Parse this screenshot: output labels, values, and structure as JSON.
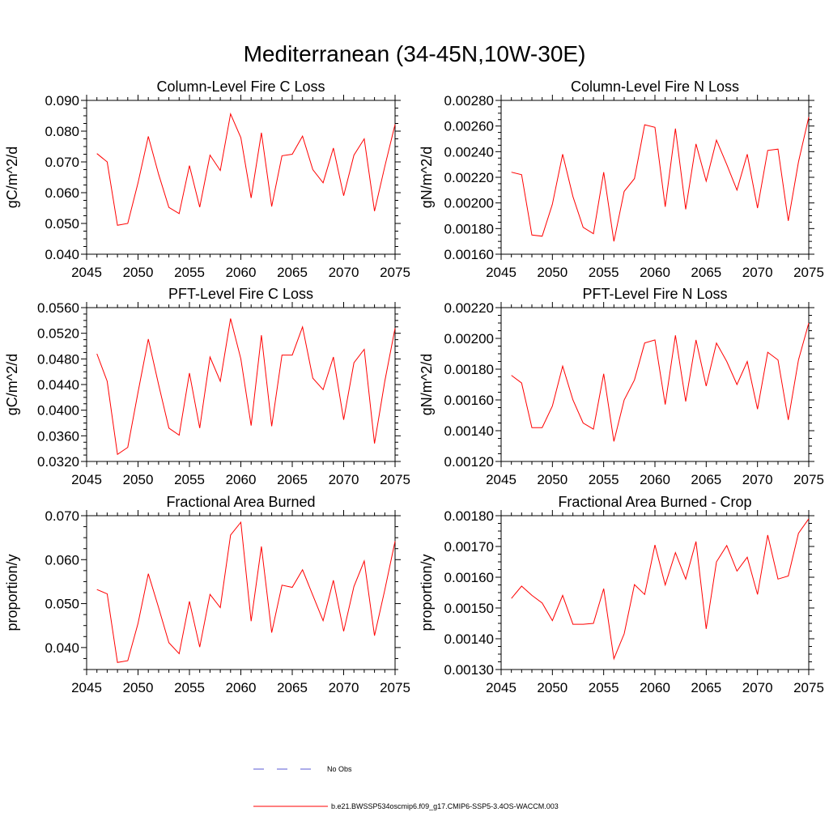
{
  "title": "Mediterranean (34-45N,10W-30E)",
  "colors": {
    "series": "#ff0000",
    "obs": "#5a5ad6",
    "axis": "#000000"
  },
  "legend": [
    {
      "label": "No Obs",
      "style": "dashed",
      "color": "#5a5ad6"
    },
    {
      "label": "b.e21.BWSSP534oscmip6.f09_g17.CMIP6-SSP5-3.4OS-WACCM.003",
      "style": "solid",
      "color": "#ff0000"
    }
  ],
  "chart_data": [
    {
      "type": "line",
      "title": "Column-Level Fire C Loss",
      "xlabel": "",
      "ylabel": "gC/m^2/d",
      "xlim": [
        2045,
        2075
      ],
      "ylim": [
        0.04,
        0.09
      ],
      "xticks": [
        2045,
        2050,
        2055,
        2060,
        2065,
        2070,
        2075
      ],
      "xtick_labels": [
        "2045",
        "2050",
        "2055",
        "2060",
        "2065",
        "2070",
        "2075"
      ],
      "yticks": [
        0.04,
        0.05,
        0.06,
        0.07,
        0.08,
        0.09
      ],
      "ytick_labels": [
        "0.040",
        "0.050",
        "0.060",
        "0.070",
        "0.080",
        "0.090"
      ],
      "x": [
        2046,
        2047,
        2048,
        2049,
        2050,
        2051,
        2052,
        2053,
        2054,
        2055,
        2056,
        2057,
        2058,
        2059,
        2060,
        2061,
        2062,
        2063,
        2064,
        2065,
        2066,
        2067,
        2068,
        2069,
        2070,
        2071,
        2072,
        2073,
        2074,
        2075
      ],
      "series": [
        {
          "name": "b.e21.BWSSP534oscmip6.f09_g17.CMIP6-SSP5-3.4OS-WACCM.003",
          "values": [
            0.0727,
            0.07,
            0.0494,
            0.05,
            0.0632,
            0.0783,
            0.066,
            0.0552,
            0.0532,
            0.0688,
            0.0553,
            0.0722,
            0.0672,
            0.0856,
            0.0779,
            0.0583,
            0.0795,
            0.0555,
            0.072,
            0.0725,
            0.0784,
            0.0675,
            0.0632,
            0.0745,
            0.059,
            0.0722,
            0.0775,
            0.054,
            0.0685,
            0.0822
          ]
        }
      ]
    },
    {
      "type": "line",
      "title": "Column-Level Fire N Loss",
      "xlabel": "",
      "ylabel": "gN/m^2/d",
      "xlim": [
        2045,
        2075
      ],
      "ylim": [
        0.0016,
        0.0028
      ],
      "xticks": [
        2045,
        2050,
        2055,
        2060,
        2065,
        2070,
        2075
      ],
      "xtick_labels": [
        "2045",
        "2050",
        "2055",
        "2060",
        "2065",
        "2070",
        "2075"
      ],
      "yticks": [
        0.0016,
        0.0018,
        0.002,
        0.0022,
        0.0024,
        0.0026,
        0.0028
      ],
      "ytick_labels": [
        "0.00160",
        "0.00180",
        "0.00200",
        "0.00220",
        "0.00240",
        "0.00260",
        "0.00280"
      ],
      "x": [
        2046,
        2047,
        2048,
        2049,
        2050,
        2051,
        2052,
        2053,
        2054,
        2055,
        2056,
        2057,
        2058,
        2059,
        2060,
        2061,
        2062,
        2063,
        2064,
        2065,
        2066,
        2067,
        2068,
        2069,
        2070,
        2071,
        2072,
        2073,
        2074,
        2075
      ],
      "series": [
        {
          "name": "b.e21.BWSSP534oscmip6.f09_g17.CMIP6-SSP5-3.4OS-WACCM.003",
          "values": [
            0.00224,
            0.00222,
            0.00175,
            0.00174,
            0.00199,
            0.00238,
            0.00205,
            0.00181,
            0.00176,
            0.00224,
            0.0017,
            0.00209,
            0.00219,
            0.00261,
            0.00259,
            0.00197,
            0.00258,
            0.00195,
            0.00246,
            0.00217,
            0.00249,
            0.0023,
            0.0021,
            0.00238,
            0.00196,
            0.00241,
            0.00242,
            0.00186,
            0.00232,
            0.00267
          ]
        }
      ]
    },
    {
      "type": "line",
      "title": "PFT-Level Fire C Loss",
      "xlabel": "",
      "ylabel": "gC/m^2/d",
      "xlim": [
        2045,
        2075
      ],
      "ylim": [
        0.032,
        0.056
      ],
      "xticks": [
        2045,
        2050,
        2055,
        2060,
        2065,
        2070,
        2075
      ],
      "xtick_labels": [
        "2045",
        "2050",
        "2055",
        "2060",
        "2065",
        "2070",
        "2075"
      ],
      "yticks": [
        0.032,
        0.036,
        0.04,
        0.044,
        0.048,
        0.052,
        0.056
      ],
      "ytick_labels": [
        "0.0320",
        "0.0360",
        "0.0400",
        "0.0440",
        "0.0480",
        "0.0520",
        "0.0560"
      ],
      "x": [
        2046,
        2047,
        2048,
        2049,
        2050,
        2051,
        2052,
        2053,
        2054,
        2055,
        2056,
        2057,
        2058,
        2059,
        2060,
        2061,
        2062,
        2063,
        2064,
        2065,
        2066,
        2067,
        2068,
        2069,
        2070,
        2071,
        2072,
        2073,
        2074,
        2075
      ],
      "series": [
        {
          "name": "b.e21.BWSSP534oscmip6.f09_g17.CMIP6-SSP5-3.4OS-WACCM.003",
          "values": [
            0.0488,
            0.0445,
            0.0331,
            0.0342,
            0.0428,
            0.0511,
            0.044,
            0.0372,
            0.0361,
            0.0458,
            0.0372,
            0.0483,
            0.0445,
            0.0543,
            0.048,
            0.0376,
            0.0517,
            0.0375,
            0.0486,
            0.0486,
            0.053,
            0.045,
            0.0432,
            0.0483,
            0.0385,
            0.0474,
            0.0495,
            0.0348,
            0.0445,
            0.0528
          ]
        }
      ]
    },
    {
      "type": "line",
      "title": "PFT-Level Fire N Loss",
      "xlabel": "",
      "ylabel": "gN/m^2/d",
      "xlim": [
        2045,
        2075
      ],
      "ylim": [
        0.0012,
        0.0022
      ],
      "xticks": [
        2045,
        2050,
        2055,
        2060,
        2065,
        2070,
        2075
      ],
      "xtick_labels": [
        "2045",
        "2050",
        "2055",
        "2060",
        "2065",
        "2070",
        "2075"
      ],
      "yticks": [
        0.0012,
        0.0014,
        0.0016,
        0.0018,
        0.002,
        0.0022
      ],
      "ytick_labels": [
        "0.00120",
        "0.00140",
        "0.00160",
        "0.00180",
        "0.00200",
        "0.00220"
      ],
      "x": [
        2046,
        2047,
        2048,
        2049,
        2050,
        2051,
        2052,
        2053,
        2054,
        2055,
        2056,
        2057,
        2058,
        2059,
        2060,
        2061,
        2062,
        2063,
        2064,
        2065,
        2066,
        2067,
        2068,
        2069,
        2070,
        2071,
        2072,
        2073,
        2074,
        2075
      ],
      "series": [
        {
          "name": "b.e21.BWSSP534oscmip6.f09_g17.CMIP6-SSP5-3.4OS-WACCM.003",
          "values": [
            0.00176,
            0.00171,
            0.00142,
            0.00142,
            0.00156,
            0.00182,
            0.0016,
            0.00145,
            0.00141,
            0.00177,
            0.00133,
            0.0016,
            0.00173,
            0.00197,
            0.00199,
            0.00157,
            0.00202,
            0.00159,
            0.00199,
            0.00169,
            0.00197,
            0.00185,
            0.0017,
            0.00185,
            0.00154,
            0.00191,
            0.00186,
            0.00147,
            0.00186,
            0.0021
          ]
        }
      ]
    },
    {
      "type": "line",
      "title": "Fractional Area Burned",
      "xlabel": "",
      "ylabel": "proportion/y",
      "xlim": [
        2045,
        2075
      ],
      "ylim": [
        0.035,
        0.07
      ],
      "xticks": [
        2045,
        2050,
        2055,
        2060,
        2065,
        2070,
        2075
      ],
      "xtick_labels": [
        "2045",
        "2050",
        "2055",
        "2060",
        "2065",
        "2070",
        "2075"
      ],
      "yticks": [
        0.04,
        0.05,
        0.06,
        0.07
      ],
      "ytick_labels": [
        "0.040",
        "0.050",
        "0.060",
        "0.070"
      ],
      "x": [
        2046,
        2047,
        2048,
        2049,
        2050,
        2051,
        2052,
        2053,
        2054,
        2055,
        2056,
        2057,
        2058,
        2059,
        2060,
        2061,
        2062,
        2063,
        2064,
        2065,
        2066,
        2067,
        2068,
        2069,
        2070,
        2071,
        2072,
        2073,
        2074,
        2075
      ],
      "series": [
        {
          "name": "b.e21.BWSSP534oscmip6.f09_g17.CMIP6-SSP5-3.4OS-WACCM.003",
          "values": [
            0.0532,
            0.0522,
            0.0366,
            0.037,
            0.0455,
            0.0568,
            0.0491,
            0.0411,
            0.0386,
            0.0505,
            0.0401,
            0.0521,
            0.0491,
            0.0656,
            0.0685,
            0.046,
            0.063,
            0.0434,
            0.0542,
            0.0537,
            0.0577,
            0.0519,
            0.0461,
            0.0553,
            0.0437,
            0.0539,
            0.0597,
            0.0427,
            0.0531,
            0.0642
          ]
        }
      ]
    },
    {
      "type": "line",
      "title": "Fractional Area Burned - Crop",
      "xlabel": "",
      "ylabel": "proportion/y",
      "xlim": [
        2045,
        2075
      ],
      "ylim": [
        0.0013,
        0.0018
      ],
      "xticks": [
        2045,
        2050,
        2055,
        2060,
        2065,
        2070,
        2075
      ],
      "xtick_labels": [
        "2045",
        "2050",
        "2055",
        "2060",
        "2065",
        "2070",
        "2075"
      ],
      "yticks": [
        0.0013,
        0.0014,
        0.0015,
        0.0016,
        0.0017,
        0.0018
      ],
      "ytick_labels": [
        "0.00130",
        "0.00140",
        "0.00150",
        "0.00160",
        "0.00170",
        "0.00180"
      ],
      "x": [
        2046,
        2047,
        2048,
        2049,
        2050,
        2051,
        2052,
        2053,
        2054,
        2055,
        2056,
        2057,
        2058,
        2059,
        2060,
        2061,
        2062,
        2063,
        2064,
        2065,
        2066,
        2067,
        2068,
        2069,
        2070,
        2071,
        2072,
        2073,
        2074,
        2075
      ],
      "series": [
        {
          "name": "b.e21.BWSSP534oscmip6.f09_g17.CMIP6-SSP5-3.4OS-WACCM.003",
          "values": [
            0.001531,
            0.001571,
            0.001541,
            0.001516,
            0.001459,
            0.001541,
            0.001447,
            0.001447,
            0.00145,
            0.001563,
            0.001335,
            0.001416,
            0.001576,
            0.001544,
            0.001705,
            0.001575,
            0.00168,
            0.001594,
            0.001716,
            0.001432,
            0.00165,
            0.001703,
            0.00162,
            0.001665,
            0.001544,
            0.001737,
            0.001594,
            0.001604,
            0.001743,
            0.00179
          ]
        }
      ]
    }
  ]
}
